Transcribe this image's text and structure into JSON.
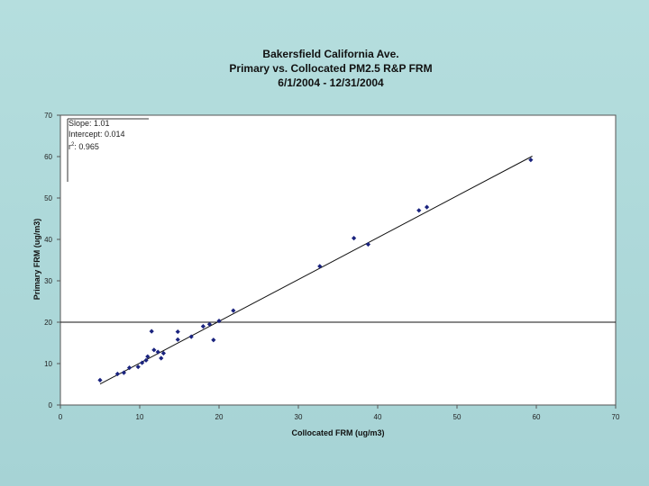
{
  "chart_data": {
    "type": "scatter",
    "title": "Bakersfield California Ave.",
    "subtitle": "Primary vs. Collocated PM2.5 R&P FRM",
    "date_range": "6/1/2004 - 12/31/2004",
    "xlabel": "Collocated FRM (ug/m3)",
    "ylabel": "Primary FRM (ug/m3)",
    "xlim": [
      0,
      70
    ],
    "ylim": [
      0,
      70
    ],
    "x_ticks": [
      "0",
      "10",
      "20",
      "30",
      "40",
      "50",
      "60",
      "70"
    ],
    "y_ticks": [
      "0",
      "10",
      "20",
      "30",
      "40",
      "50",
      "60",
      "70"
    ],
    "grid": false,
    "reference_line_y": 20,
    "stats": {
      "slope": "Slope: 1.01",
      "intercept": "Intercept: 0.014",
      "r2_prefix": "r",
      "r2_sup": "2",
      "r2_value": ": 0.965"
    },
    "trendline": {
      "slope": 1.01,
      "intercept": 0.014,
      "x_range": [
        5,
        59.5
      ]
    },
    "series": [
      {
        "marker_color": "#1a237e",
        "points": [
          [
            5,
            6
          ],
          [
            7.2,
            7.5
          ],
          [
            8,
            7.8
          ],
          [
            8.7,
            9
          ],
          [
            9.8,
            9.2
          ],
          [
            10.3,
            10.2
          ],
          [
            10.8,
            10.8
          ],
          [
            11,
            11.7
          ],
          [
            11.5,
            17.8
          ],
          [
            11.8,
            13.3
          ],
          [
            12.3,
            12.8
          ],
          [
            12.7,
            11.3
          ],
          [
            13,
            12.5
          ],
          [
            14.8,
            17.7
          ],
          [
            14.8,
            15.8
          ],
          [
            16.5,
            16.5
          ],
          [
            18,
            19
          ],
          [
            18.8,
            19.5
          ],
          [
            19.3,
            15.7
          ],
          [
            20,
            20.3
          ],
          [
            21.8,
            22.8
          ],
          [
            32.7,
            33.5
          ],
          [
            37,
            40.3
          ],
          [
            38.8,
            38.8
          ],
          [
            45.2,
            47
          ],
          [
            46.2,
            47.8
          ],
          [
            59.3,
            59.2
          ]
        ]
      }
    ]
  }
}
